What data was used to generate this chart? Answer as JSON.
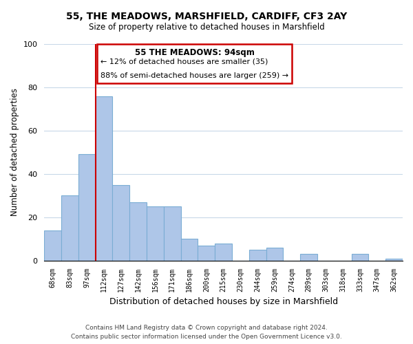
{
  "title": "55, THE MEADOWS, MARSHFIELD, CARDIFF, CF3 2AY",
  "subtitle": "Size of property relative to detached houses in Marshfield",
  "xlabel": "Distribution of detached houses by size in Marshfield",
  "ylabel": "Number of detached properties",
  "bar_labels": [
    "68sqm",
    "83sqm",
    "97sqm",
    "112sqm",
    "127sqm",
    "142sqm",
    "156sqm",
    "171sqm",
    "186sqm",
    "200sqm",
    "215sqm",
    "230sqm",
    "244sqm",
    "259sqm",
    "274sqm",
    "289sqm",
    "303sqm",
    "318sqm",
    "333sqm",
    "347sqm",
    "362sqm"
  ],
  "bar_values": [
    14,
    30,
    49,
    76,
    35,
    27,
    25,
    25,
    10,
    7,
    8,
    0,
    5,
    6,
    0,
    3,
    0,
    0,
    3,
    0,
    1
  ],
  "bar_color": "#aec6e8",
  "bar_edge_color": "#7aadd4",
  "vline_x": 2.5,
  "vline_color": "#cc0000",
  "ylim": [
    0,
    100
  ],
  "annotation_title": "55 THE MEADOWS: 94sqm",
  "annotation_line1": "← 12% of detached houses are smaller (35)",
  "annotation_line2": "88% of semi-detached houses are larger (259) →",
  "annotation_box_color": "#ffffff",
  "annotation_box_edge_color": "#cc0000",
  "footer_line1": "Contains HM Land Registry data © Crown copyright and database right 2024.",
  "footer_line2": "Contains public sector information licensed under the Open Government Licence v3.0.",
  "background_color": "#ffffff",
  "grid_color": "#c8d8e8"
}
